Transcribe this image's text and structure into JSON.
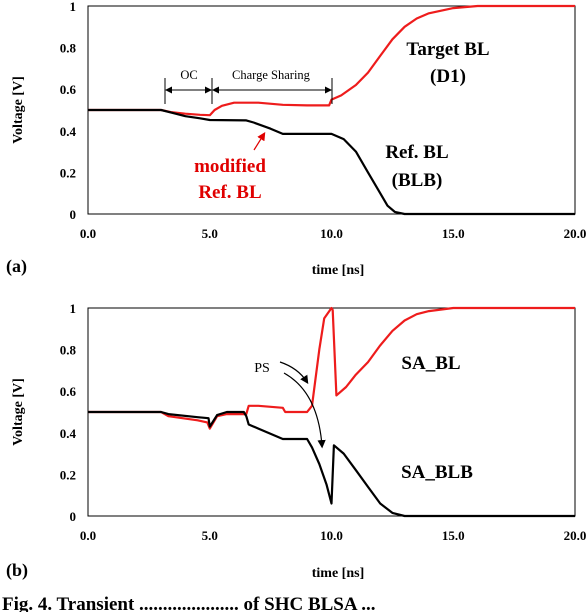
{
  "caption": "Fig. 4. Transient ..................... of SHC BLSA ...",
  "colors": {
    "target": "#ee1c1c",
    "ref": "#000000",
    "modified": "#e00000"
  },
  "chart_data": [
    {
      "type": "line",
      "panel_label": "(a)",
      "xlabel": "time [ns]",
      "ylabel": "Voltage [V]",
      "xlim": [
        0,
        20
      ],
      "ylim": [
        0,
        1
      ],
      "x_ticks": [
        "0.0",
        "5.0",
        "10.0",
        "15.0",
        "20.0"
      ],
      "y_ticks": [
        "0",
        "0.2",
        "0.4",
        "0.6",
        "0.8",
        "1"
      ],
      "annotations": {
        "oc": "OC",
        "charge_sharing": "Charge Sharing",
        "target_bl_1": "Target BL",
        "target_bl_2": "(D1)",
        "ref_bl_1": "Ref. BL",
        "ref_bl_2": "(BLB)",
        "modified_1": "modified",
        "modified_2": "Ref. BL"
      },
      "series": [
        {
          "key": "target",
          "color": "#ee1c1c",
          "points": [
            [
              0,
              0.5
            ],
            [
              3,
              0.5
            ],
            [
              3.4,
              0.49
            ],
            [
              4,
              0.482
            ],
            [
              4.6,
              0.477
            ],
            [
              5.0,
              0.475
            ],
            [
              5.2,
              0.5
            ],
            [
              5.5,
              0.52
            ],
            [
              6,
              0.535
            ],
            [
              7,
              0.535
            ],
            [
              8,
              0.525
            ],
            [
              9,
              0.522
            ],
            [
              9.9,
              0.522
            ],
            [
              10,
              0.55
            ],
            [
              10.4,
              0.57
            ],
            [
              11,
              0.62
            ],
            [
              11.5,
              0.68
            ],
            [
              12,
              0.76
            ],
            [
              12.5,
              0.84
            ],
            [
              13,
              0.9
            ],
            [
              13.5,
              0.94
            ],
            [
              14,
              0.965
            ],
            [
              15,
              0.99
            ],
            [
              16,
              1.0
            ],
            [
              20,
              1.0
            ]
          ]
        },
        {
          "key": "ref",
          "color": "#000000",
          "points": [
            [
              0,
              0.5
            ],
            [
              3,
              0.5
            ],
            [
              3.5,
              0.485
            ],
            [
              4,
              0.47
            ],
            [
              4.6,
              0.46
            ],
            [
              5,
              0.452
            ],
            [
              6.5,
              0.45
            ],
            [
              6.8,
              0.44
            ],
            [
              7.5,
              0.41
            ],
            [
              8,
              0.385
            ],
            [
              10,
              0.385
            ],
            [
              10.5,
              0.36
            ],
            [
              11,
              0.3
            ],
            [
              11.5,
              0.2
            ],
            [
              12,
              0.1
            ],
            [
              12.3,
              0.04
            ],
            [
              12.6,
              0.01
            ],
            [
              13,
              0.0
            ],
            [
              20,
              0.0
            ]
          ]
        }
      ]
    },
    {
      "type": "line",
      "panel_label": "(b)",
      "xlabel": "time [ns]",
      "ylabel": "Voltage [V]",
      "xlim": [
        0,
        20
      ],
      "ylim": [
        0,
        1
      ],
      "x_ticks": [
        "0.0",
        "5.0",
        "10.0",
        "15.0",
        "20.0"
      ],
      "y_ticks": [
        "0",
        "0.2",
        "0.4",
        "0.6",
        "0.8",
        "1"
      ],
      "annotations": {
        "ps": "PS",
        "sa_bl": "SA_BL",
        "sa_blb": "SA_BLB"
      },
      "series": [
        {
          "key": "sa_bl",
          "color": "#ee1c1c",
          "points": [
            [
              0,
              0.5
            ],
            [
              3,
              0.5
            ],
            [
              3.3,
              0.48
            ],
            [
              4.5,
              0.46
            ],
            [
              4.9,
              0.45
            ],
            [
              5,
              0.42
            ],
            [
              5.3,
              0.48
            ],
            [
              5.7,
              0.49
            ],
            [
              6.5,
              0.49
            ],
            [
              6.6,
              0.53
            ],
            [
              7,
              0.53
            ],
            [
              8,
              0.52
            ],
            [
              8.1,
              0.5
            ],
            [
              9,
              0.5
            ],
            [
              9.2,
              0.53
            ],
            [
              9.5,
              0.8
            ],
            [
              9.7,
              0.95
            ],
            [
              10,
              1.0
            ],
            [
              10.05,
              0.99
            ],
            [
              10.2,
              0.58
            ],
            [
              10.6,
              0.62
            ],
            [
              11,
              0.68
            ],
            [
              11.5,
              0.74
            ],
            [
              12,
              0.82
            ],
            [
              12.5,
              0.89
            ],
            [
              13,
              0.94
            ],
            [
              13.5,
              0.97
            ],
            [
              14,
              0.985
            ],
            [
              15,
              1.0
            ],
            [
              20,
              1.0
            ]
          ]
        },
        {
          "key": "sa_blb",
          "color": "#000000",
          "points": [
            [
              0,
              0.5
            ],
            [
              3,
              0.5
            ],
            [
              3.3,
              0.49
            ],
            [
              4.5,
              0.475
            ],
            [
              4.95,
              0.47
            ],
            [
              5,
              0.43
            ],
            [
              5.3,
              0.485
            ],
            [
              5.7,
              0.5
            ],
            [
              6.4,
              0.5
            ],
            [
              6.5,
              0.48
            ],
            [
              6.6,
              0.44
            ],
            [
              7,
              0.42
            ],
            [
              8,
              0.37
            ],
            [
              9,
              0.37
            ],
            [
              9.2,
              0.33
            ],
            [
              9.5,
              0.25
            ],
            [
              9.8,
              0.15
            ],
            [
              10,
              0.06
            ],
            [
              10.1,
              0.34
            ],
            [
              10.5,
              0.3
            ],
            [
              11,
              0.22
            ],
            [
              11.5,
              0.14
            ],
            [
              12,
              0.06
            ],
            [
              12.5,
              0.015
            ],
            [
              13,
              0.0
            ],
            [
              20,
              0.0
            ]
          ]
        }
      ]
    }
  ]
}
